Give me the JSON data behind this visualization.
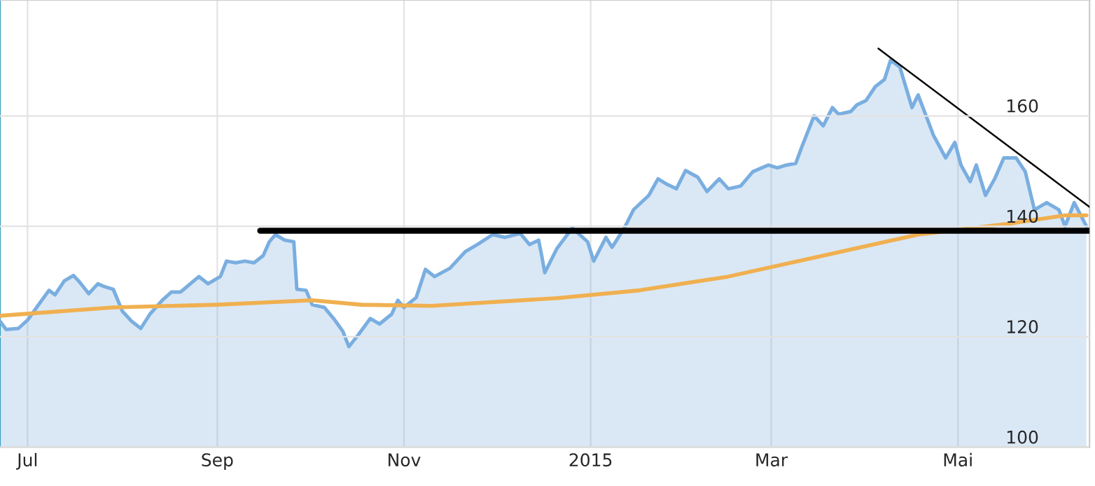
{
  "chart_data": {
    "type": "line",
    "xlim": [
      "2014-06-22",
      "2015-06-13"
    ],
    "ylim": [
      100,
      181
    ],
    "xticks": [
      {
        "value": "2014-07-01",
        "label": "Jul"
      },
      {
        "value": "2014-09-01",
        "label": "Sep"
      },
      {
        "value": "2014-11-01",
        "label": "Nov"
      },
      {
        "value": "2015-01-01",
        "label": "2015"
      },
      {
        "value": "2015-03-01",
        "label": "Mar"
      },
      {
        "value": "2015-05-01",
        "label": "Mai"
      }
    ],
    "yticks": [
      100,
      120,
      140,
      160
    ],
    "grid": true,
    "legend": false,
    "marker": "none",
    "line_style": "solid",
    "series": [
      {
        "type": "area",
        "color": "#7aaee0",
        "x": [
          "2014-06-22",
          "2014-06-24",
          "2014-06-28",
          "2014-07-01",
          "2014-07-05",
          "2014-07-08",
          "2014-07-10",
          "2014-07-13",
          "2014-07-16",
          "2014-07-18",
          "2014-07-21",
          "2014-07-24",
          "2014-07-26",
          "2014-07-29",
          "2014-08-01",
          "2014-08-04",
          "2014-08-07",
          "2014-08-10",
          "2014-08-14",
          "2014-08-17",
          "2014-08-20",
          "2014-08-26",
          "2014-08-29",
          "2014-09-02",
          "2014-09-04",
          "2014-09-07",
          "2014-09-10",
          "2014-09-13",
          "2014-09-16",
          "2014-09-18",
          "2014-09-20",
          "2014-09-23",
          "2014-09-26",
          "2014-09-27",
          "2014-09-30",
          "2014-10-02",
          "2014-10-06",
          "2014-10-09",
          "2014-10-12",
          "2014-10-14",
          "2014-10-17",
          "2014-10-21",
          "2014-10-24",
          "2014-10-28",
          "2014-10-30",
          "2014-11-01",
          "2014-11-05",
          "2014-11-08",
          "2014-11-11",
          "2014-11-16",
          "2014-11-21",
          "2014-11-25",
          "2014-11-30",
          "2014-12-04",
          "2014-12-09",
          "2014-12-12",
          "2014-12-15",
          "2014-12-16",
          "2014-12-17",
          "2014-12-21",
          "2014-12-26",
          "2014-12-31",
          "2015-01-02",
          "2015-01-06",
          "2015-01-08",
          "2015-01-12",
          "2015-01-15",
          "2015-01-20",
          "2015-01-23",
          "2015-01-26",
          "2015-01-29",
          "2015-02-01",
          "2015-02-05",
          "2015-02-08",
          "2015-02-12",
          "2015-02-15",
          "2015-02-19",
          "2015-02-23",
          "2015-02-28",
          "2015-03-03",
          "2015-03-06",
          "2015-03-09",
          "2015-03-11",
          "2015-03-15",
          "2015-03-18",
          "2015-03-21",
          "2015-03-23",
          "2015-03-27",
          "2015-03-29",
          "2015-04-01",
          "2015-04-04",
          "2015-04-07",
          "2015-04-09",
          "2015-04-12",
          "2015-04-16",
          "2015-04-18",
          "2015-04-23",
          "2015-04-27",
          "2015-04-30",
          "2015-05-02",
          "2015-05-05",
          "2015-05-07",
          "2015-05-10",
          "2015-05-13",
          "2015-05-16",
          "2015-05-20",
          "2015-05-23",
          "2015-05-26",
          "2015-05-30",
          "2015-06-03",
          "2015-06-05",
          "2015-06-08",
          "2015-06-12"
        ],
        "values": [
          122.8,
          121.3,
          121.5,
          123.0,
          126.1,
          128.4,
          127.6,
          130.1,
          131.1,
          129.9,
          127.8,
          129.6,
          129.1,
          128.6,
          124.6,
          122.8,
          121.5,
          124.1,
          126.6,
          128.1,
          128.1,
          130.9,
          129.6,
          130.9,
          133.7,
          133.4,
          133.7,
          133.4,
          134.7,
          137.2,
          138.5,
          137.5,
          137.2,
          128.6,
          128.4,
          125.8,
          125.3,
          123.3,
          121.0,
          118.2,
          120.3,
          123.3,
          122.3,
          124.1,
          126.6,
          125.3,
          127.1,
          132.2,
          130.9,
          132.4,
          135.4,
          136.7,
          138.5,
          138.0,
          138.7,
          136.7,
          137.5,
          134.7,
          131.6,
          136.0,
          139.7,
          137.2,
          133.7,
          138.0,
          136.2,
          139.7,
          143.0,
          145.6,
          148.6,
          147.6,
          146.8,
          150.1,
          148.9,
          146.3,
          148.6,
          146.8,
          147.3,
          149.9,
          151.1,
          150.6,
          151.1,
          151.4,
          154.4,
          160.0,
          158.2,
          161.5,
          160.3,
          160.8,
          162.0,
          162.8,
          165.3,
          166.6,
          170.1,
          168.9,
          161.5,
          163.8,
          156.5,
          152.4,
          155.2,
          151.1,
          148.1,
          151.1,
          145.6,
          148.6,
          152.4,
          152.4,
          149.9,
          143.0,
          144.3,
          143.0,
          140.0,
          144.3,
          140.0
        ]
      },
      {
        "color": "#f0b050",
        "x": [
          "2014-06-22",
          "2014-07-29",
          "2014-09-01",
          "2014-10-02",
          "2014-10-18",
          "2014-11-10",
          "2014-12-21",
          "2015-01-17",
          "2015-02-15",
          "2015-03-18",
          "2015-04-18",
          "2015-05-18",
          "2015-06-05",
          "2015-06-12"
        ],
        "values": [
          123.8,
          125.3,
          125.8,
          126.6,
          125.8,
          125.6,
          127.0,
          128.4,
          130.9,
          134.7,
          138.5,
          140.5,
          142.0,
          142.0
        ]
      },
      {
        "color": "#000000",
        "x": [
          "2014-09-15",
          "2015-06-13"
        ],
        "values": [
          139.2,
          139.2
        ]
      },
      {
        "color": "#000000",
        "x": [
          "2015-04-05",
          "2015-06-13"
        ],
        "values": [
          172.2,
          143.5
        ]
      }
    ]
  }
}
